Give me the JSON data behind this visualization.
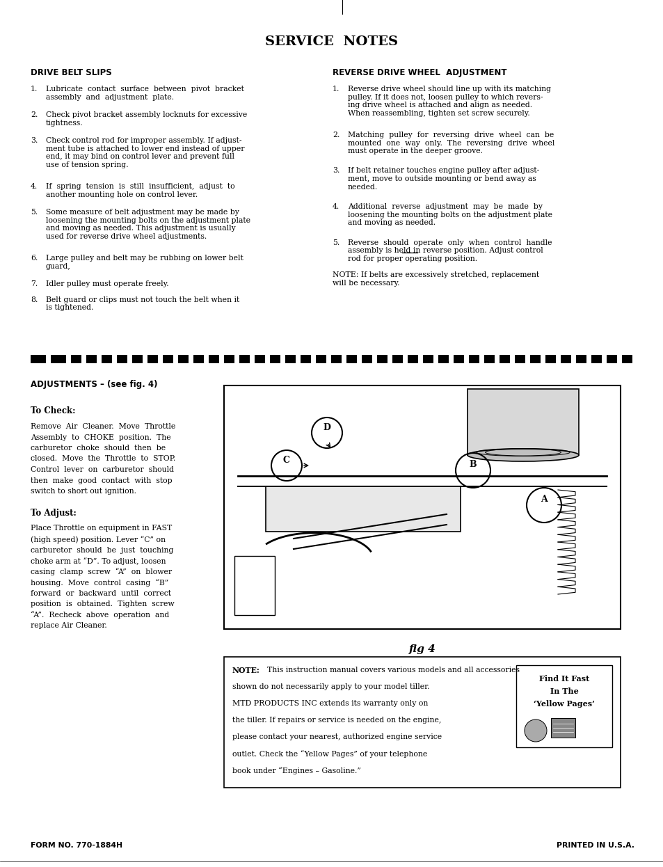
{
  "bg_color": "#ffffff",
  "page_width": 9.54,
  "page_height": 12.46,
  "title": "SERVICE  NOTES",
  "left_heading": "DRIVE BELT SLIPS",
  "right_heading": "REVERSE DRIVE WHEEL  ADJUSTMENT",
  "right_note": "NOTE: If belts are excessively stretched, replacement\nwill be necessary.",
  "adj_heading": "ADJUSTMENTS – (see fig. 4)",
  "to_check_heading": "To Check:",
  "to_check_lines": [
    "Remove  Air  Cleaner.  Move  Throttle",
    "Assembly  to  CHOKE  position.  The",
    "carburetor  choke  should  then  be",
    "closed.  Move  the  Throttle  to  STOP.",
    "Control  lever  on  carburetor  should",
    "then  make  good  contact  with  stop",
    "switch to short out ignition."
  ],
  "to_adjust_heading": "To Adjust:",
  "to_adjust_lines": [
    "Place Throttle on equipment in FAST",
    "(high speed) position. Lever “C” on",
    "carburetor  should  be  just  touching",
    "choke arm at “D”. To adjust, loosen",
    "casing  clamp  screw  “A”  on  blower",
    "housing.  Move  control  casing  “B”",
    "forward  or  backward  until  correct",
    "position  is  obtained.  Tighten  screw",
    "“A”.  Recheck  above  operation  and",
    "replace Air Cleaner."
  ],
  "fig_caption": "fig 4",
  "note_line1": "NOTE:  This instruction manual covers various models and all accessories",
  "note_line2": "shown do not necessarily apply to your model tiller.",
  "note_line3": "MTD PRODUCTS INC extends its warranty only on",
  "note_line4": "the tiller. If repairs or service is needed on the engine,",
  "note_line5": "please contact your nearest, authorized engine service",
  "note_line6": "outlet. Check the “Yellow Pages” of your telephone",
  "note_line7": "book under “Engines – Gasoline.”",
  "yellow_line1": "Find It Fast",
  "yellow_line2": "In The",
  "yellow_line3": "‘Yellow Pages’",
  "form_no": "FORM NO. 770-1884H",
  "printed": "PRINTED IN U.S.A.",
  "text_color": "#000000"
}
